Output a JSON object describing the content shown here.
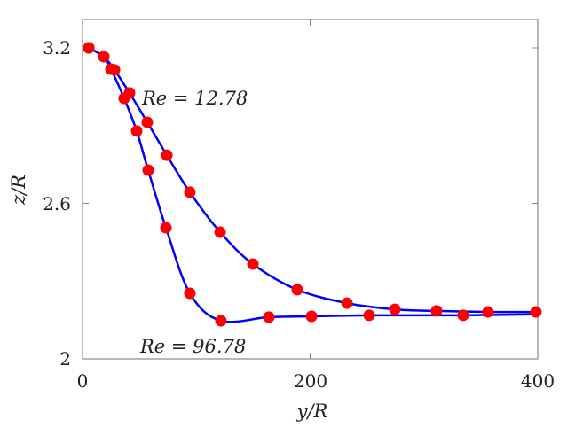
{
  "chart_data": {
    "type": "line",
    "title": "",
    "xlabel": "y/R",
    "ylabel": "z/R",
    "xlim": [
      0,
      400
    ],
    "ylim": [
      2.0,
      3.2
    ],
    "xticks": [
      "0",
      "200",
      "400"
    ],
    "xtick_values": [
      0,
      200,
      400
    ],
    "yticks": [
      "2",
      "2.6",
      "3.2"
    ],
    "ytick_values": [
      2.0,
      2.6,
      3.2
    ],
    "grid": false,
    "line_color": "#0000ff",
    "marker_color": "#ff0000",
    "series": [
      {
        "name": "Re = 12.78",
        "x": [
          5.5,
          18.7,
          28.1,
          41.3,
          56.9,
          74.1,
          94.3,
          120.9,
          149.7,
          188.7,
          232.4,
          274.5,
          311.1,
          356.3,
          398.4
        ],
        "y": [
          3.2,
          3.166,
          3.115,
          3.026,
          2.913,
          2.786,
          2.643,
          2.489,
          2.366,
          2.267,
          2.215,
          2.191,
          2.185,
          2.181,
          2.181
        ]
      },
      {
        "name": "Re = 96.78",
        "x": [
          5.5,
          18.7,
          25.0,
          36.6,
          47.6,
          57.7,
          73.3,
          94.3,
          121.6,
          163.7,
          201.2,
          251.9,
          334.5,
          398.4
        ],
        "y": [
          3.2,
          3.166,
          3.118,
          3.005,
          2.879,
          2.728,
          2.506,
          2.253,
          2.147,
          2.161,
          2.164,
          2.168,
          2.168,
          2.172
        ],
        "marker_count": 13
      }
    ],
    "annotations": [
      "Re = 12.78",
      "Re = 96.78"
    ]
  }
}
